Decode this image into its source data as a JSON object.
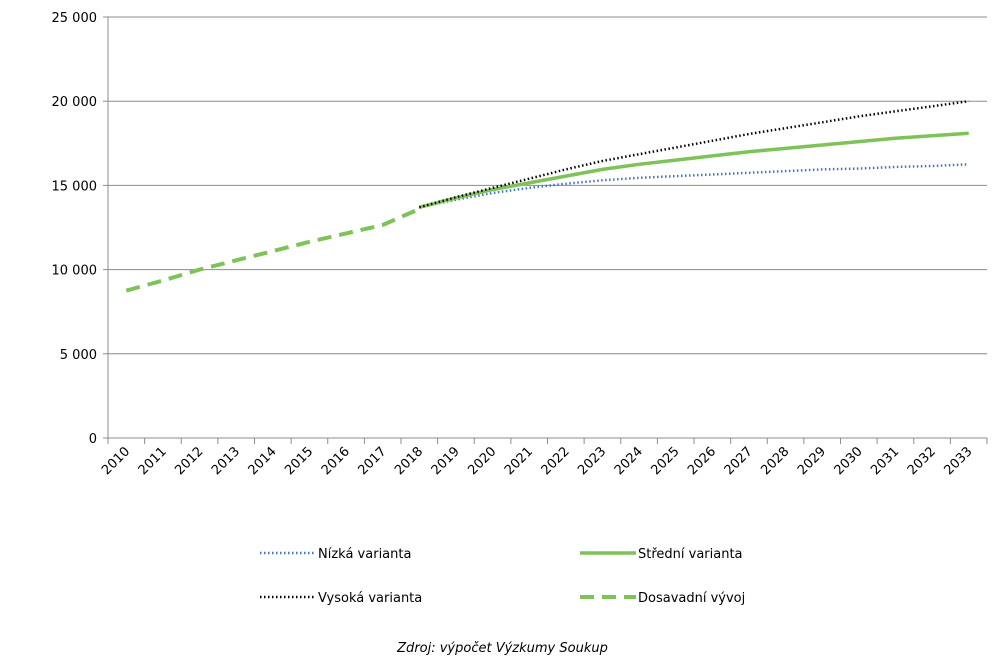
{
  "chart_data": {
    "type": "line",
    "x": [
      "2010",
      "2011",
      "2012",
      "2013",
      "2014",
      "2015",
      "2016",
      "2017",
      "2018",
      "2019",
      "2020",
      "2021",
      "2022",
      "2023",
      "2024",
      "2025",
      "2026",
      "2027",
      "2028",
      "2029",
      "2030",
      "2031",
      "2032",
      "2033"
    ],
    "ylim": [
      0,
      25000
    ],
    "yticks": [
      0,
      5000,
      10000,
      15000,
      20000,
      25000
    ],
    "ytick_labels": [
      "0",
      "5 000",
      "10 000",
      "15 000",
      "20 000",
      "25 000"
    ],
    "grid": "horizontal",
    "legend_position": "bottom",
    "series": [
      {
        "name": "Nízká varianta",
        "color": "#4472C4",
        "style": "dotted",
        "values": [
          null,
          null,
          null,
          null,
          null,
          null,
          null,
          null,
          13700,
          14150,
          14550,
          14850,
          15100,
          15300,
          15450,
          15550,
          15650,
          15750,
          15850,
          15950,
          16000,
          16100,
          16150,
          16250
        ]
      },
      {
        "name": "Střední varianta",
        "color": "#7DC358",
        "style": "solid",
        "values": [
          null,
          null,
          null,
          null,
          null,
          null,
          null,
          null,
          13700,
          14250,
          14750,
          15150,
          15550,
          15950,
          16250,
          16500,
          16750,
          17000,
          17200,
          17400,
          17600,
          17800,
          17950,
          18100
        ]
      },
      {
        "name": "Vysoká varianta",
        "color": "#000000",
        "style": "dotted",
        "values": [
          null,
          null,
          null,
          null,
          null,
          null,
          null,
          null,
          13700,
          14300,
          14850,
          15400,
          15950,
          16450,
          16850,
          17250,
          17650,
          18050,
          18400,
          18750,
          19100,
          19400,
          19700,
          20000
        ]
      },
      {
        "name": "Dosavadní vývoj",
        "color": "#7DC358",
        "style": "dashed",
        "values": [
          8750,
          9350,
          10000,
          10550,
          11100,
          11650,
          12150,
          12650,
          13600,
          null,
          null,
          null,
          null,
          null,
          null,
          null,
          null,
          null,
          null,
          null,
          null,
          null,
          null,
          null
        ]
      }
    ]
  },
  "source_note": "Zdroj: výpočet Výzkumy Soukup"
}
